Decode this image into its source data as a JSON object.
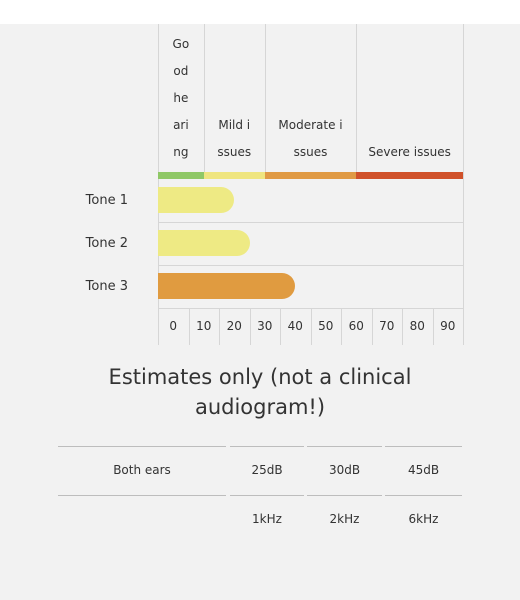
{
  "chart_data": {
    "type": "bar",
    "orientation": "horizontal",
    "categories": [
      "Tone 1",
      "Tone 2",
      "Tone 3"
    ],
    "values": [
      25,
      30,
      45
    ],
    "colors": [
      "#eeea84",
      "#eeea84",
      "#e09b40"
    ],
    "xlim": [
      0,
      100
    ],
    "xticks": [
      0,
      10,
      20,
      30,
      40,
      50,
      60,
      70,
      80,
      90
    ],
    "bands": [
      {
        "label": "Good hearing",
        "from": 0,
        "to": 15,
        "color": "#8fc866"
      },
      {
        "label": "Mild issues",
        "from": 15,
        "to": 35,
        "color": "#efe57f"
      },
      {
        "label": "Moderate issues",
        "from": 35,
        "to": 65,
        "color": "#e09a44"
      },
      {
        "label": "Severe issues",
        "from": 65,
        "to": 100,
        "color": "#d0512a"
      }
    ]
  },
  "caption": "Estimates only (not a clinical audiogram!)",
  "table": {
    "rows": [
      {
        "label": "Both ears",
        "cells": [
          "25dB",
          "30dB",
          "45dB"
        ]
      },
      {
        "cells": [
          "1kHz",
          "2kHz",
          "6kHz"
        ]
      }
    ]
  }
}
